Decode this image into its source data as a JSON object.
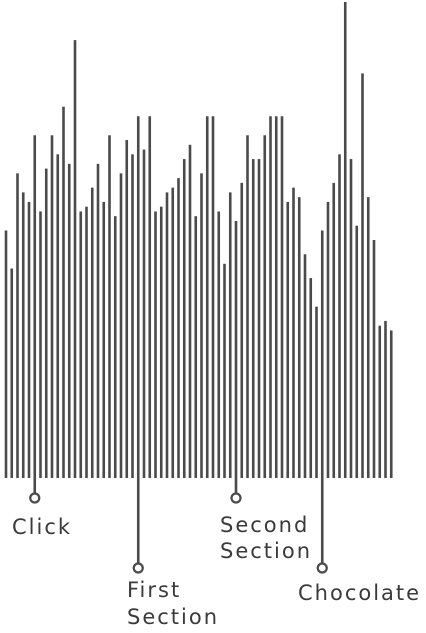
{
  "chart_data": {
    "type": "bar",
    "title": "",
    "xlabel": "",
    "ylabel": "",
    "color": "#4a4a4a",
    "ylim": [
      0,
      100
    ],
    "values": [
      52,
      44,
      64,
      60,
      58,
      72,
      56,
      65,
      72,
      68,
      78,
      66,
      92,
      56,
      57,
      61,
      66,
      58,
      72,
      55,
      64,
      71,
      68,
      76,
      69,
      76,
      56,
      57,
      60,
      61,
      63,
      67,
      70,
      55,
      64,
      76,
      76,
      56,
      45,
      60,
      54,
      62,
      72,
      67,
      67,
      72,
      76,
      76,
      76,
      58,
      61,
      59,
      47,
      42,
      36,
      52,
      58,
      62,
      68,
      100,
      67,
      53,
      85,
      59,
      50,
      32,
      33,
      31
    ],
    "annotations": [
      {
        "lines": [
          "Click"
        ],
        "bar_index": 5
      },
      {
        "lines": [
          "First",
          "Section"
        ],
        "bar_index": 23
      },
      {
        "lines": [
          "Second",
          "Section"
        ],
        "bar_index": 40
      },
      {
        "lines": [
          "Chocolate"
        ],
        "bar_index": 55
      }
    ]
  }
}
